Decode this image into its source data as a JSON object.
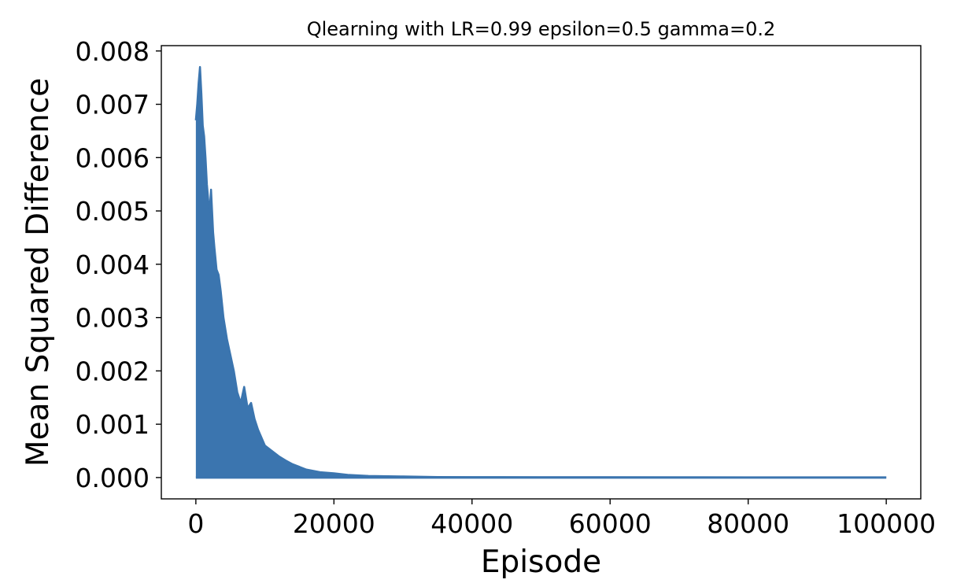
{
  "chart_data": {
    "type": "line",
    "title": "Qlearning with LR=0.99 epsilon=0.5 gamma=0.2",
    "xlabel": "Episode",
    "ylabel": "Mean Squared Difference",
    "xlim": [
      -5000,
      105000
    ],
    "ylim": [
      -0.0004,
      0.0081
    ],
    "grid": false,
    "xticks": [
      {
        "value": 0,
        "label": "0"
      },
      {
        "value": 20000,
        "label": "20000"
      },
      {
        "value": 40000,
        "label": "40000"
      },
      {
        "value": 60000,
        "label": "60000"
      },
      {
        "value": 80000,
        "label": "80000"
      },
      {
        "value": 100000,
        "label": "100000"
      }
    ],
    "yticks": [
      {
        "value": 0.0,
        "label": "0.000"
      },
      {
        "value": 0.001,
        "label": "0.001"
      },
      {
        "value": 0.002,
        "label": "0.002"
      },
      {
        "value": 0.003,
        "label": "0.003"
      },
      {
        "value": 0.004,
        "label": "0.004"
      },
      {
        "value": 0.005,
        "label": "0.005"
      },
      {
        "value": 0.006,
        "label": "0.006"
      },
      {
        "value": 0.007,
        "label": "0.007"
      },
      {
        "value": 0.008,
        "label": "0.008"
      }
    ],
    "series": [
      {
        "color": "#3b75af",
        "x": [
          0,
          200,
          400,
          600,
          800,
          1000,
          1200,
          1400,
          1600,
          1800,
          2000,
          2200,
          2500,
          2700,
          3000,
          3300,
          3600,
          4000,
          4500,
          5000,
          5500,
          6000,
          6500,
          7000,
          7500,
          8000,
          8500,
          9000,
          10000,
          11000,
          12000,
          13000,
          14000,
          15000,
          16000,
          18000,
          20000,
          22000,
          25000,
          30000,
          35000,
          40000,
          50000,
          60000,
          70000,
          80000,
          90000,
          100000
        ],
        "y": [
          0.0067,
          0.007,
          0.0074,
          0.0077,
          0.0072,
          0.0066,
          0.0064,
          0.006,
          0.0055,
          0.0052,
          0.005,
          0.0054,
          0.0046,
          0.0043,
          0.0039,
          0.0038,
          0.0035,
          0.003,
          0.0026,
          0.0023,
          0.002,
          0.0016,
          0.0014,
          0.0017,
          0.0013,
          0.0014,
          0.0011,
          0.0009,
          0.0006,
          0.0005,
          0.0004,
          0.00032,
          0.00025,
          0.0002,
          0.00015,
          0.0001,
          8e-05,
          5e-05,
          3e-05,
          2e-05,
          1e-05,
          8e-06,
          6e-06,
          5e-06,
          4e-06,
          3e-06,
          2e-06,
          2e-06
        ]
      }
    ]
  }
}
